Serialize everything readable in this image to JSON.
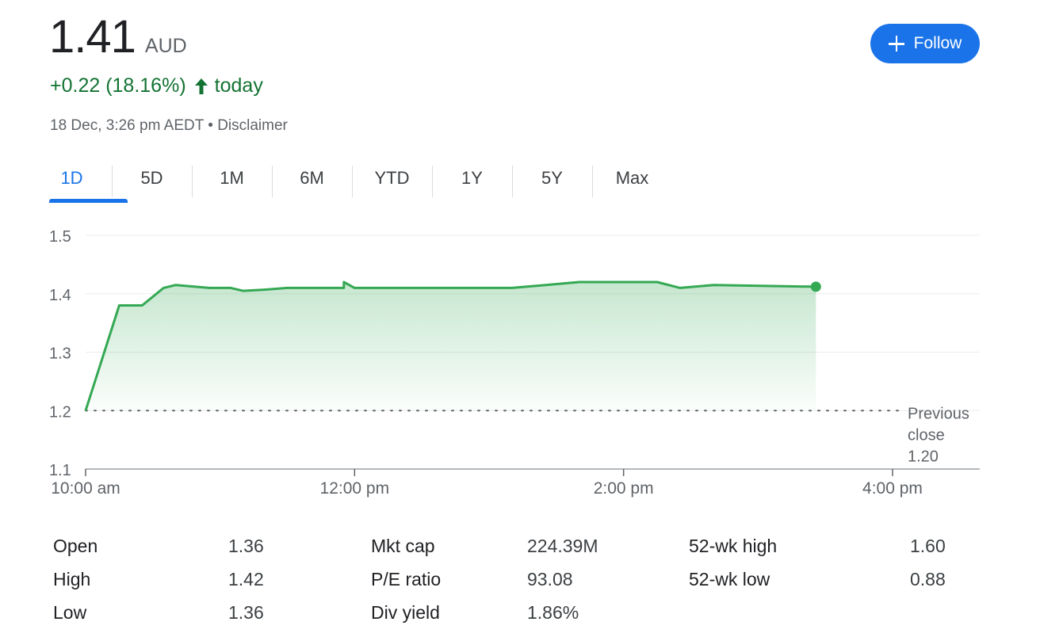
{
  "quote": {
    "price": "1.41",
    "currency": "AUD",
    "change": "+0.22 (18.16%)",
    "change_suffix": "today",
    "timestamp": "18 Dec, 3:26 pm AEDT",
    "separator": "•",
    "disclaimer_label": "Disclaimer",
    "follow_label": "Follow",
    "positive_color": "#137333",
    "accent_color": "#1a73e8"
  },
  "tabs": [
    {
      "label": "1D",
      "active": true
    },
    {
      "label": "5D"
    },
    {
      "label": "1M"
    },
    {
      "label": "6M"
    },
    {
      "label": "YTD"
    },
    {
      "label": "1Y"
    },
    {
      "label": "5Y"
    },
    {
      "label": "Max"
    }
  ],
  "chart_data": {
    "type": "area",
    "ylim": [
      1.1,
      1.5
    ],
    "y_ticks": [
      "1.5",
      "1.4",
      "1.3",
      "1.2",
      "1.1"
    ],
    "x_ticks": [
      "10:00 am",
      "12:00 pm",
      "2:00 pm",
      "4:00 pm"
    ],
    "x_range_hours": [
      10.0,
      16.0
    ],
    "grid": true,
    "line_color": "#34a853",
    "previous_close": {
      "value": 1.2,
      "label_line1": "Previous",
      "label_line2": "close",
      "label_value": "1.20"
    },
    "series": [
      {
        "x": [
          10.0,
          10.25,
          10.42,
          10.58,
          10.67,
          10.92,
          11.08,
          11.17,
          11.33,
          11.5,
          11.92,
          11.92,
          12.0,
          13.17,
          13.42,
          13.67,
          14.0,
          14.25,
          14.42,
          14.67,
          15.43
        ],
        "y": [
          1.2,
          1.38,
          1.38,
          1.41,
          1.415,
          1.41,
          1.41,
          1.405,
          1.407,
          1.41,
          1.41,
          1.42,
          1.41,
          1.41,
          1.415,
          1.42,
          1.42,
          1.42,
          1.41,
          1.415,
          1.412
        ]
      }
    ]
  },
  "stats": [
    {
      "label": "Open",
      "value": "1.36"
    },
    {
      "label": "High",
      "value": "1.42"
    },
    {
      "label": "Low",
      "value": "1.36"
    },
    {
      "label": "Mkt cap",
      "value": "224.39M"
    },
    {
      "label": "P/E ratio",
      "value": "93.08"
    },
    {
      "label": "Div yield",
      "value": "1.86%"
    },
    {
      "label": "52-wk high",
      "value": "1.60"
    },
    {
      "label": "52-wk low",
      "value": "0.88"
    }
  ]
}
